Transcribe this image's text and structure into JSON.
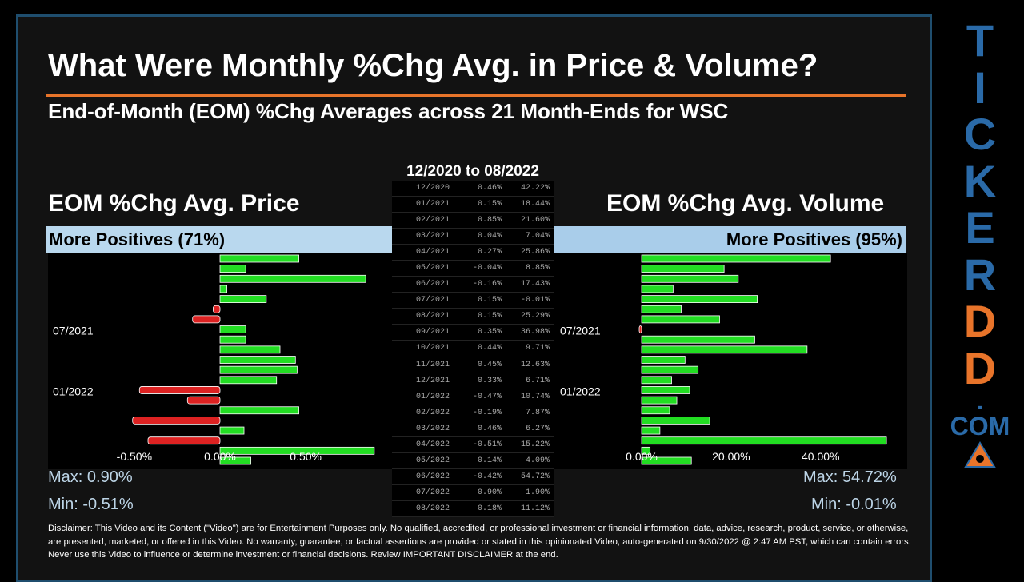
{
  "title": "What Were Monthly %Chg Avg. in Price & Volume?",
  "subtitle": "End-of-Month (EOM) %Chg Averages across 21 Month-Ends for WSC",
  "period": "12/2020 to 08/2022",
  "price": {
    "heading": "EOM %Chg Avg. Price",
    "positives": "More Positives (71%)",
    "max": "Max: 0.90%",
    "min": "Min: -0.51%"
  },
  "volume": {
    "heading": "EOM %Chg Avg. Volume",
    "positives": "More Positives (95%)",
    "max": "Max: 54.72%",
    "min": "Min: -0.01%"
  },
  "table_rows": [
    [
      "12/2020",
      "0.46%",
      "42.22%"
    ],
    [
      "01/2021",
      "0.15%",
      "18.44%"
    ],
    [
      "02/2021",
      "0.85%",
      "21.60%"
    ],
    [
      "03/2021",
      "0.04%",
      "7.04%"
    ],
    [
      "04/2021",
      "0.27%",
      "25.86%"
    ],
    [
      "05/2021",
      "-0.04%",
      "8.85%"
    ],
    [
      "06/2021",
      "-0.16%",
      "17.43%"
    ],
    [
      "07/2021",
      "0.15%",
      "-0.01%"
    ],
    [
      "08/2021",
      "0.15%",
      "25.29%"
    ],
    [
      "09/2021",
      "0.35%",
      "36.98%"
    ],
    [
      "10/2021",
      "0.44%",
      "9.71%"
    ],
    [
      "11/2021",
      "0.45%",
      "12.63%"
    ],
    [
      "12/2021",
      "0.33%",
      "6.71%"
    ],
    [
      "01/2022",
      "-0.47%",
      "10.74%"
    ],
    [
      "02/2022",
      "-0.19%",
      "7.87%"
    ],
    [
      "03/2022",
      "0.46%",
      "6.27%"
    ],
    [
      "04/2022",
      "-0.51%",
      "15.22%"
    ],
    [
      "05/2022",
      "0.14%",
      "4.09%"
    ],
    [
      "06/2022",
      "-0.42%",
      "54.72%"
    ],
    [
      "07/2022",
      "0.90%",
      "1.90%"
    ],
    [
      "08/2022",
      "0.18%",
      "11.12%"
    ]
  ],
  "chart_data": [
    {
      "type": "bar",
      "orientation": "horizontal",
      "categories": [
        "12/2020",
        "01/2021",
        "02/2021",
        "03/2021",
        "04/2021",
        "05/2021",
        "06/2021",
        "07/2021",
        "08/2021",
        "09/2021",
        "10/2021",
        "11/2021",
        "12/2021",
        "01/2022",
        "02/2022",
        "03/2022",
        "04/2022",
        "05/2022",
        "06/2022",
        "07/2022",
        "08/2022"
      ],
      "values": [
        0.46,
        0.15,
        0.85,
        0.04,
        0.27,
        -0.04,
        -0.16,
        0.15,
        0.15,
        0.35,
        0.44,
        0.45,
        0.33,
        -0.47,
        -0.19,
        0.46,
        -0.51,
        0.14,
        -0.42,
        0.9,
        0.18
      ],
      "xlim": [
        -0.98,
        0.98
      ],
      "xticks": [
        "-0.50%",
        "0.00%",
        "0.50%"
      ],
      "xtick_values": [
        -0.5,
        0,
        0.5
      ],
      "category_labels_shown": [
        "07/2021",
        "01/2022"
      ],
      "positive_color": "#22dd22",
      "negative_color": "#dd2222"
    },
    {
      "type": "bar",
      "orientation": "horizontal",
      "categories": [
        "12/2020",
        "01/2021",
        "02/2021",
        "03/2021",
        "04/2021",
        "05/2021",
        "06/2021",
        "07/2021",
        "08/2021",
        "09/2021",
        "10/2021",
        "11/2021",
        "12/2021",
        "01/2022",
        "02/2022",
        "03/2022",
        "04/2022",
        "05/2022",
        "06/2022",
        "07/2022",
        "08/2022"
      ],
      "values": [
        42.22,
        18.44,
        21.6,
        7.04,
        25.86,
        8.85,
        17.43,
        -0.01,
        25.29,
        36.98,
        9.71,
        12.63,
        6.71,
        10.74,
        7.87,
        6.27,
        15.22,
        4.09,
        54.72,
        1.9,
        11.12
      ],
      "xlim": [
        0,
        59
      ],
      "xticks": [
        "0.00%",
        "20.00%",
        "40.00%"
      ],
      "xtick_values": [
        0,
        20,
        40
      ],
      "category_labels_shown": [
        "07/2021",
        "01/2022"
      ],
      "positive_color": "#22dd22",
      "negative_color": "#dd2222"
    }
  ],
  "disclaimer": "Disclaimer: This Video and its Content (\"Video\") are for Entertainment Purposes only. No qualified, accredited, or professional investment or financial information, data, advice, research, product, service, or otherwise, are presented, marketed, or offered in this Video. No warranty, guarantee, or factual assertions are provided or stated in this opinionated Video, auto-generated on 9/30/2022 @ 2:47 AM PST, which can contain errors. Never use this Video to influence or determine investment or financial decisions. Review IMPORTANT DISCLAIMER at the end.",
  "brand": {
    "letters": [
      "T",
      "I",
      "C",
      "K",
      "E",
      "R",
      "D",
      "D"
    ],
    "letter_colors": [
      "#2a6aa8",
      "#2a6aa8",
      "#2a6aa8",
      "#2a6aa8",
      "#2a6aa8",
      "#2a6aa8",
      "#e8742a",
      "#e8742a"
    ],
    "dot": ".",
    "com": "COM"
  }
}
